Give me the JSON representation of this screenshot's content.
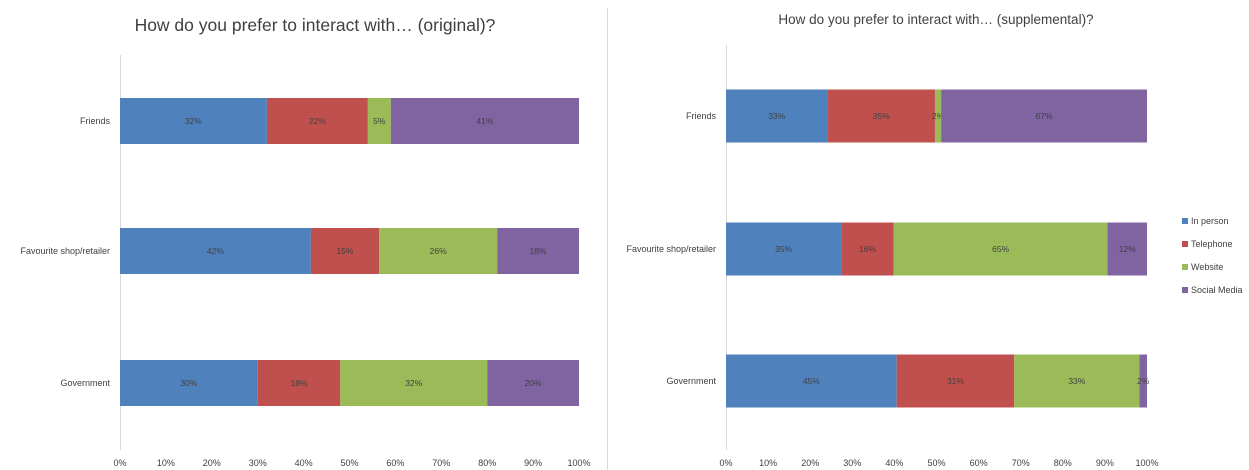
{
  "legend": [
    "In person",
    "Telephone",
    "Website",
    "Social Media"
  ],
  "colors": [
    "#4f81bd",
    "#c0504d",
    "#9bbb59",
    "#8064a2"
  ],
  "chart_data": [
    {
      "type": "bar",
      "stacked": "100%",
      "orientation": "horizontal",
      "title": "How do you prefer to interact with… (original)?",
      "categories": [
        "Friends",
        "Favourite shop/retailer",
        "Government"
      ],
      "series": [
        {
          "name": "In person",
          "values": [
            32,
            42,
            30
          ]
        },
        {
          "name": "Telephone",
          "values": [
            22,
            15,
            18
          ]
        },
        {
          "name": "Website",
          "values": [
            5,
            26,
            32
          ]
        },
        {
          "name": "Social Media",
          "values": [
            41,
            18,
            20
          ]
        }
      ],
      "xlim": [
        0,
        100
      ],
      "x_ticks": [
        "0%",
        "10%",
        "20%",
        "30%",
        "40%",
        "50%",
        "60%",
        "70%",
        "80%",
        "90%",
        "100%"
      ],
      "grid": false,
      "legend": "none"
    },
    {
      "type": "bar",
      "stacked": "100%",
      "orientation": "horizontal",
      "title": "How do you prefer to interact with… (supplemental)?",
      "categories": [
        "Friends",
        "Favourite shop/retailer",
        "Government"
      ],
      "series": [
        {
          "name": "In person",
          "values": [
            33,
            35,
            45
          ]
        },
        {
          "name": "Telephone",
          "values": [
            35,
            16,
            31
          ]
        },
        {
          "name": "Website",
          "values": [
            2,
            65,
            33
          ]
        },
        {
          "name": "Social Media",
          "values": [
            67,
            12,
            2
          ]
        }
      ],
      "xlim": [
        0,
        100
      ],
      "x_ticks": [
        "0%",
        "10%",
        "20%",
        "30%",
        "40%",
        "50%",
        "60%",
        "70%",
        "80%",
        "90%",
        "100%"
      ],
      "grid": false,
      "legend": "right"
    }
  ]
}
